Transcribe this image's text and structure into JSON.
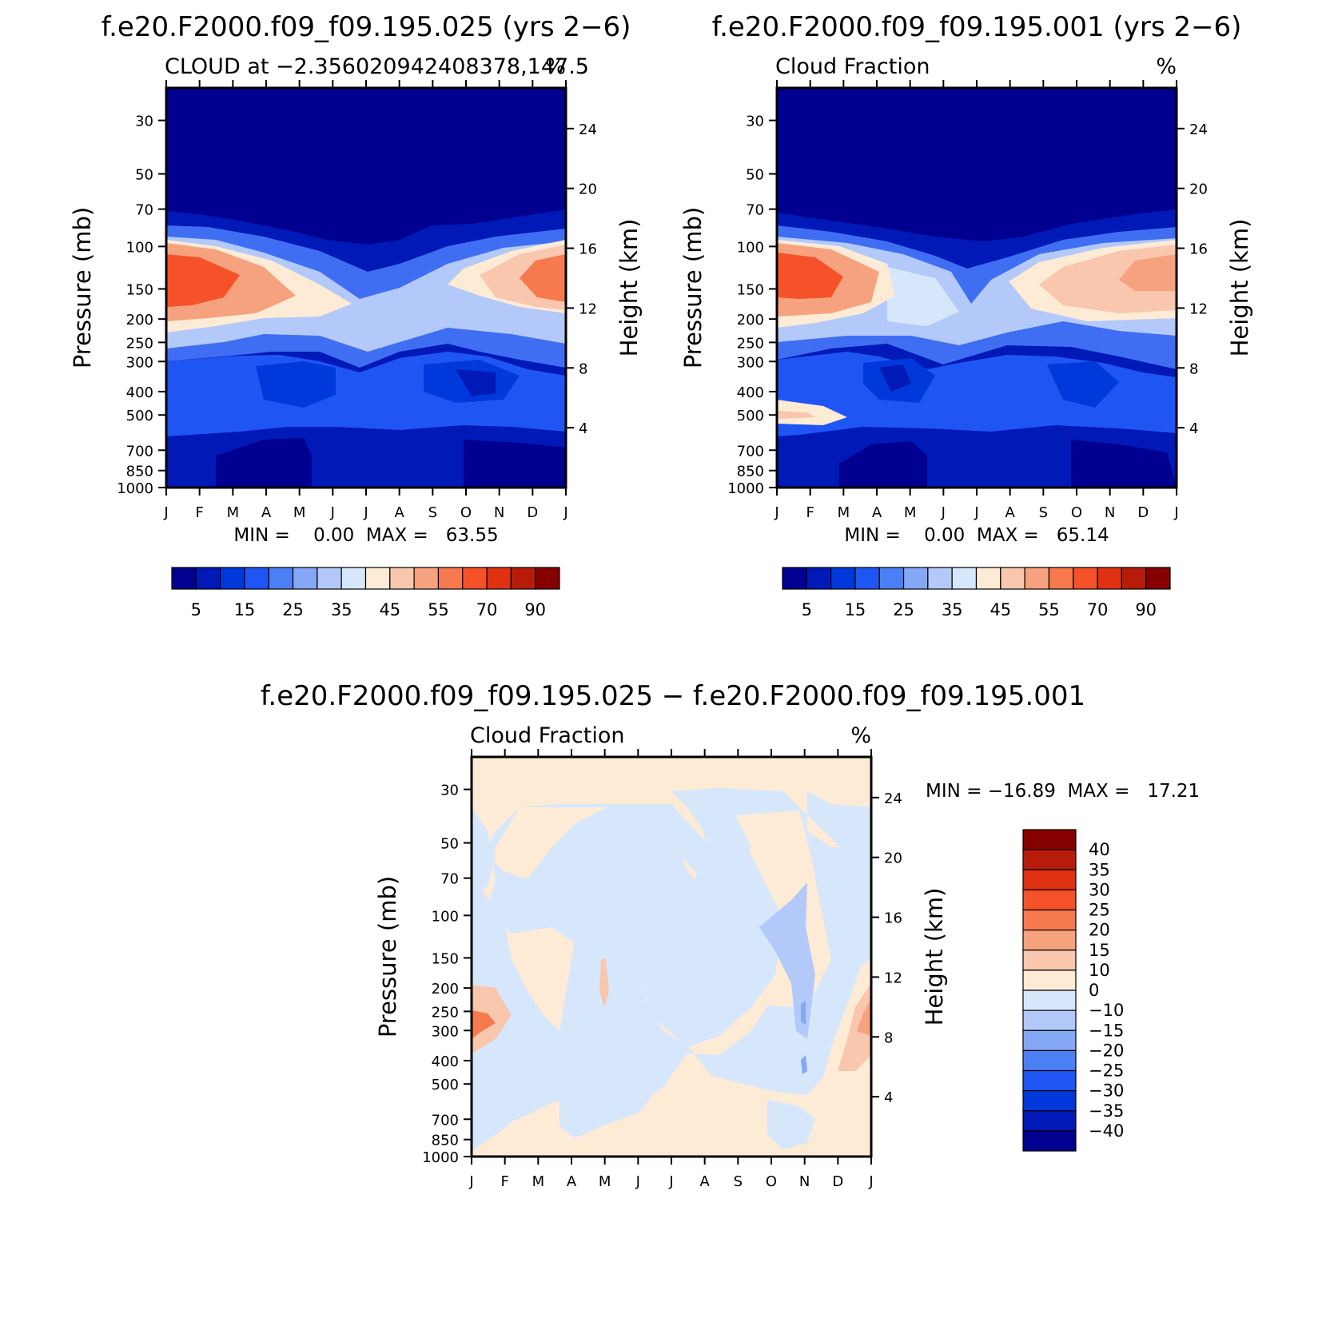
{
  "panels": [
    {
      "title": "f.e20.F2000.f09_f09.195.025 (yrs 2−6)",
      "left_label": "CLOUD at −2.356020942408378,147.5",
      "right_label": "%",
      "y_left_label": "Pressure (mb)",
      "y_right_label": "Height (km)",
      "minmax": "MIN =    0.00  MAX =   63.55"
    },
    {
      "title": "f.e20.F2000.f09_f09.195.001 (yrs 2−6)",
      "left_label": "Cloud Fraction",
      "right_label": "%",
      "y_left_label": "Pressure (mb)",
      "y_right_label": "Height (km)",
      "minmax": "MIN =    0.00  MAX =   65.14"
    },
    {
      "title": "f.e20.F2000.f09_f09.195.025 − f.e20.F2000.f09_f09.195.001",
      "left_label": "Cloud Fraction",
      "right_label": "%",
      "y_left_label": "Pressure (mb)",
      "y_right_label": "Height (km)",
      "minmax": "MIN = −16.89  MAX =   17.21"
    }
  ],
  "chart_data": [
    {
      "type": "heatmap",
      "title": "f.e20.F2000.f09_f09.195.025 (yrs 2−6)",
      "x": [
        "J",
        "F",
        "M",
        "A",
        "M",
        "J",
        "J",
        "A",
        "S",
        "O",
        "N",
        "D",
        "J"
      ],
      "y_pressure_ticks": [
        30,
        50,
        70,
        100,
        150,
        200,
        250,
        300,
        400,
        500,
        700,
        850,
        1000
      ],
      "y_height_ticks": [
        4,
        8,
        12,
        16,
        20,
        24
      ],
      "ylim_pressure": [
        1000,
        22
      ],
      "colorbar_labels": [
        "5",
        "15",
        "25",
        "35",
        "45",
        "55",
        "70",
        "90"
      ],
      "colorbar_colors": [
        "#000090",
        "#0019b7",
        "#0039db",
        "#1f55f3",
        "#4a80f4",
        "#85a8f6",
        "#b3c9f9",
        "#d6e7fc",
        "#fdebd6",
        "#f9c6ae",
        "#f7a27e",
        "#f67a4e",
        "#f5522a",
        "#e03113",
        "#b71c0a",
        "#870000"
      ],
      "min": 0.0,
      "max": 63.55
    },
    {
      "type": "heatmap",
      "title": "f.e20.F2000.f09_f09.195.001 (yrs 2−6)",
      "x": [
        "J",
        "F",
        "M",
        "A",
        "M",
        "J",
        "J",
        "A",
        "S",
        "O",
        "N",
        "D",
        "J"
      ],
      "y_pressure_ticks": [
        30,
        50,
        70,
        100,
        150,
        200,
        250,
        300,
        400,
        500,
        700,
        850,
        1000
      ],
      "y_height_ticks": [
        4,
        8,
        12,
        16,
        20,
        24
      ],
      "ylim_pressure": [
        1000,
        22
      ],
      "colorbar_labels": [
        "5",
        "15",
        "25",
        "35",
        "45",
        "55",
        "70",
        "90"
      ],
      "colorbar_colors": [
        "#000090",
        "#0019b7",
        "#0039db",
        "#1f55f3",
        "#4a80f4",
        "#85a8f6",
        "#b3c9f9",
        "#d6e7fc",
        "#fdebd6",
        "#f9c6ae",
        "#f7a27e",
        "#f67a4e",
        "#f5522a",
        "#e03113",
        "#b71c0a",
        "#870000"
      ],
      "min": 0.0,
      "max": 65.14
    },
    {
      "type": "heatmap",
      "title": "f.e20.F2000.f09_f09.195.025 − f.e20.F2000.f09_f09.195.001",
      "x": [
        "J",
        "F",
        "M",
        "A",
        "M",
        "J",
        "J",
        "A",
        "S",
        "O",
        "N",
        "D",
        "J"
      ],
      "y_pressure_ticks": [
        30,
        50,
        70,
        100,
        150,
        200,
        250,
        300,
        400,
        500,
        700,
        850,
        1000
      ],
      "y_height_ticks": [
        4,
        8,
        12,
        16,
        20,
        24
      ],
      "ylim_pressure": [
        1000,
        22
      ],
      "colorbar_labels": [
        "40",
        "35",
        "30",
        "25",
        "20",
        "15",
        "10",
        "0",
        "−10",
        "−15",
        "−20",
        "−25",
        "−30",
        "−35",
        "−40"
      ],
      "colorbar_colors": [
        "#870000",
        "#b71c0a",
        "#e03113",
        "#f5522a",
        "#f67a4e",
        "#f7a27e",
        "#f9c6ae",
        "#fdebd6",
        "#d6e7fc",
        "#b3c9f9",
        "#85a8f6",
        "#4a80f4",
        "#1f55f3",
        "#0039db",
        "#0019b7",
        "#000090"
      ],
      "min": -16.89,
      "max": 17.21
    }
  ]
}
